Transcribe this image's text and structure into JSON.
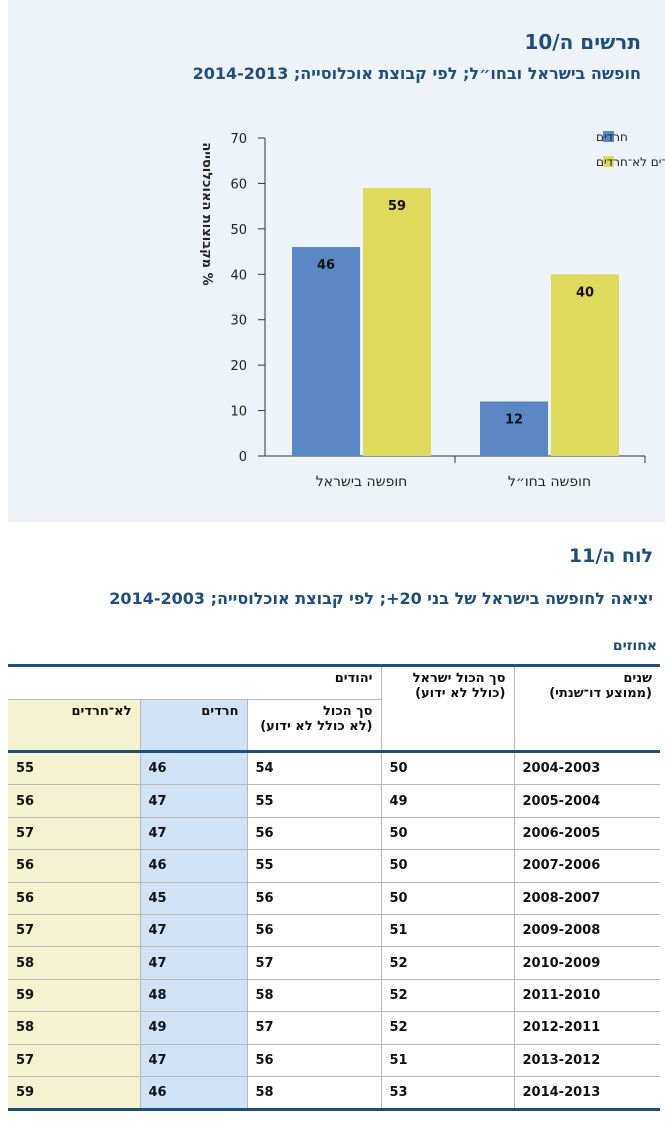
{
  "chart": {
    "figure_title": "תרשים ה/10",
    "subtitle": "חופשה בישראל ובחו״ל; לפי קבוצת אוכלוסייה; 2014-2013",
    "legend": {
      "haredim": "חרדים",
      "non_haredim": "יהודים לא־חרדים"
    },
    "colors": {
      "haredim": "#5b87c5",
      "non_haredim": "#dfd95c"
    }
  },
  "chart_data": {
    "type": "bar",
    "categories": [
      "חופשה בישראל",
      "חופשה בחו״ל"
    ],
    "series": [
      {
        "name": "חרדים",
        "values": [
          46,
          12
        ]
      },
      {
        "name": "יהודים לא־חרדים",
        "values": [
          59,
          40
        ]
      }
    ],
    "ylabel": "% מקבוצות האוכלוסייה",
    "ylim": [
      0,
      70
    ],
    "yticks": [
      0,
      10,
      20,
      30,
      40,
      50,
      60,
      70
    ],
    "legend_position": "top-right",
    "grid": false
  },
  "table": {
    "figure_title": "לוח ה/11",
    "subtitle": "יציאה לחופשה בישראל של בני 20+; לפי קבוצת אוכלוסייה; 2014-2003",
    "unit": "אחוזים",
    "headers": {
      "years": "שנים",
      "years_sub": "(ממוצע דו־שנתי)",
      "israel_total": "סך הכול ישראל",
      "israel_total_sub": "(כולל לא ידוע)",
      "jews": "יהודים",
      "jews_total": "סך הכול",
      "jews_total_sub": "(לא כולל לא ידוע)",
      "haredim": "חרדים",
      "non_haredim": "לא־חרדים"
    },
    "rows": [
      {
        "years": "2004-2003",
        "israel": "50",
        "jews": "54",
        "haredim": "46",
        "non_haredim": "55"
      },
      {
        "years": "2005-2004",
        "israel": "49",
        "jews": "55",
        "haredim": "47",
        "non_haredim": "56"
      },
      {
        "years": "2006-2005",
        "israel": "50",
        "jews": "56",
        "haredim": "47",
        "non_haredim": "57"
      },
      {
        "years": "2007-2006",
        "israel": "50",
        "jews": "55",
        "haredim": "46",
        "non_haredim": "56"
      },
      {
        "years": "2008-2007",
        "israel": "50",
        "jews": "56",
        "haredim": "45",
        "non_haredim": "56"
      },
      {
        "years": "2009-2008",
        "israel": "51",
        "jews": "56",
        "haredim": "47",
        "non_haredim": "57"
      },
      {
        "years": "2010-2009",
        "israel": "52",
        "jews": "57",
        "haredim": "47",
        "non_haredim": "58"
      },
      {
        "years": "2011-2010",
        "israel": "52",
        "jews": "58",
        "haredim": "48",
        "non_haredim": "59"
      },
      {
        "years": "2012-2011",
        "israel": "52",
        "jews": "57",
        "haredim": "49",
        "non_haredim": "58"
      },
      {
        "years": "2013-2012",
        "israel": "51",
        "jews": "56",
        "haredim": "47",
        "non_haredim": "57"
      },
      {
        "years": "2014-2013",
        "israel": "53",
        "jews": "58",
        "haredim": "46",
        "non_haredim": "59"
      }
    ]
  }
}
